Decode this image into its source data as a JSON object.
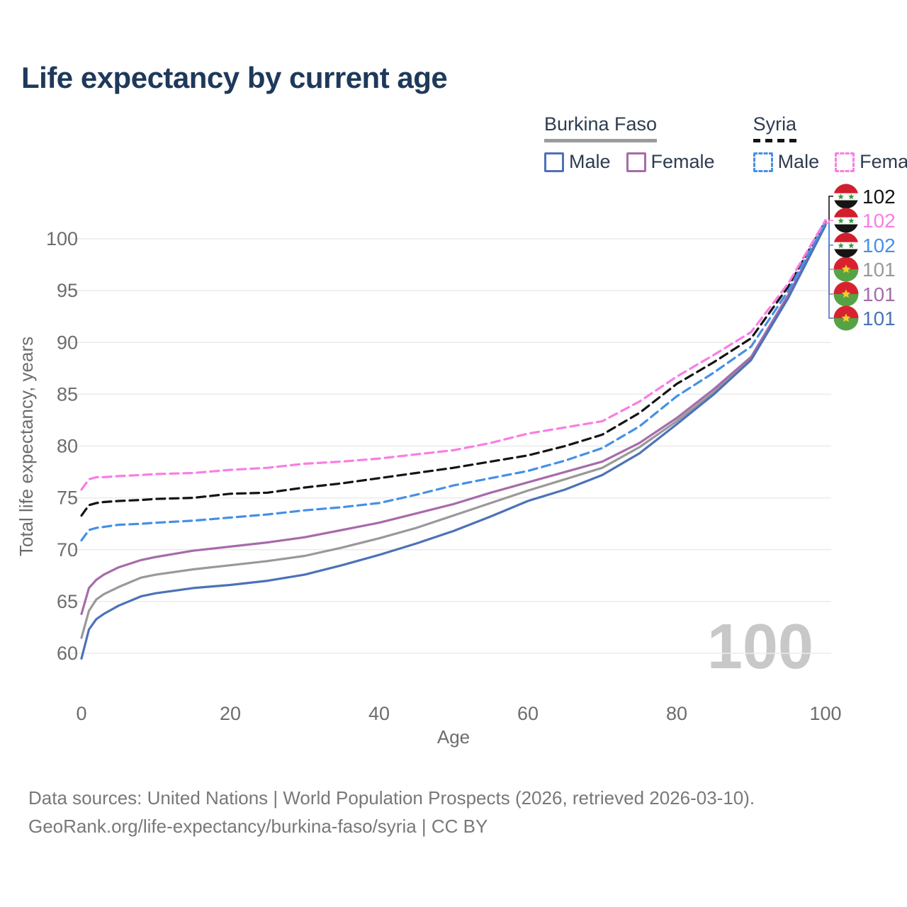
{
  "title": "Life expectancy by current age",
  "legend": {
    "groups": [
      {
        "name": "Burkina Faso",
        "underline_style": "solid",
        "underline_color": "#9b9b9b",
        "items": [
          {
            "label": "Male",
            "color": "#4C72B8",
            "dashed": false
          },
          {
            "label": "Female",
            "color": "#A76BAB",
            "dashed": false
          }
        ]
      },
      {
        "name": "Syria",
        "underline_style": "dashed",
        "underline_color": "#141414",
        "items": [
          {
            "label": "Male",
            "color": "#4590E6",
            "dashed": true
          },
          {
            "label": "Female",
            "color": "#FA7DE3",
            "dashed": true
          }
        ]
      }
    ]
  },
  "chart_data": {
    "type": "line",
    "title": "Life expectancy by current age",
    "xlabel": "Age",
    "ylabel": "Total life expectancy, years",
    "xlim": [
      0,
      100
    ],
    "ylim": [
      57.5,
      103.5
    ],
    "xticks": [
      0,
      20,
      40,
      60,
      80,
      100
    ],
    "yticks": [
      60,
      65,
      70,
      75,
      80,
      85,
      90,
      95,
      100
    ],
    "grid": "horizontal-only",
    "legend_position": "top-right",
    "frame_label": "100",
    "x": [
      0,
      1,
      2,
      3,
      5,
      8,
      10,
      15,
      20,
      25,
      30,
      35,
      40,
      45,
      50,
      55,
      60,
      65,
      70,
      75,
      80,
      85,
      90,
      95,
      100
    ],
    "series": [
      {
        "name": "Burkina Faso Total",
        "country": "burkina-faso",
        "sex": "total",
        "color": "#999999",
        "dashed": false,
        "end_label": "101",
        "label_row": 3,
        "values": [
          61.5,
          64.1,
          65.2,
          65.7,
          66.4,
          67.3,
          67.6,
          68.1,
          68.5,
          68.9,
          69.4,
          70.2,
          71.1,
          72.1,
          73.3,
          74.5,
          75.7,
          76.8,
          77.9,
          79.9,
          82.4,
          85.2,
          88.5,
          94.5,
          101.4
        ]
      },
      {
        "name": "Burkina Faso Female",
        "country": "burkina-faso",
        "sex": "female",
        "color": "#A76BAB",
        "dashed": false,
        "end_label": "101",
        "label_row": 4,
        "values": [
          63.8,
          66.3,
          67.1,
          67.6,
          68.3,
          69.0,
          69.3,
          69.9,
          70.3,
          70.7,
          71.2,
          71.9,
          72.6,
          73.5,
          74.4,
          75.5,
          76.5,
          77.5,
          78.5,
          80.3,
          82.7,
          85.5,
          88.6,
          94.6,
          101.4
        ]
      },
      {
        "name": "Burkina Faso Male",
        "country": "burkina-faso",
        "sex": "male",
        "color": "#4C72B8",
        "dashed": false,
        "end_label": "101",
        "label_row": 5,
        "values": [
          59.5,
          62.3,
          63.3,
          63.8,
          64.6,
          65.5,
          65.8,
          66.3,
          66.6,
          67.0,
          67.6,
          68.5,
          69.5,
          70.6,
          71.8,
          73.2,
          74.7,
          75.8,
          77.2,
          79.3,
          82.1,
          85.0,
          88.3,
          94.3,
          101.3
        ]
      },
      {
        "name": "Syria Total",
        "country": "syria",
        "sex": "total",
        "color": "#141414",
        "dashed": true,
        "end_label": "102",
        "label_row": 0,
        "values": [
          73.3,
          74.3,
          74.5,
          74.6,
          74.7,
          74.8,
          74.9,
          75.0,
          75.4,
          75.5,
          76.0,
          76.4,
          76.9,
          77.4,
          77.9,
          78.5,
          79.1,
          80.0,
          81.1,
          83.2,
          86.0,
          88.1,
          90.4,
          95.4,
          101.7
        ]
      },
      {
        "name": "Syria Male",
        "country": "syria",
        "sex": "male",
        "color": "#4590E6",
        "dashed": true,
        "end_label": "102",
        "label_row": 2,
        "values": [
          70.9,
          71.9,
          72.1,
          72.2,
          72.4,
          72.5,
          72.6,
          72.8,
          73.1,
          73.4,
          73.8,
          74.1,
          74.5,
          75.3,
          76.2,
          76.9,
          77.6,
          78.6,
          79.8,
          81.9,
          84.8,
          87.1,
          89.6,
          95.0,
          101.6
        ]
      },
      {
        "name": "Syria Female",
        "country": "syria",
        "sex": "female",
        "color": "#FA7DE3",
        "dashed": true,
        "end_label": "102",
        "label_row": 1,
        "values": [
          75.8,
          76.8,
          77.0,
          77.0,
          77.1,
          77.2,
          77.3,
          77.4,
          77.7,
          77.9,
          78.3,
          78.5,
          78.8,
          79.2,
          79.6,
          80.3,
          81.2,
          81.8,
          82.4,
          84.3,
          86.7,
          88.8,
          91.0,
          95.7,
          101.8
        ]
      }
    ]
  },
  "flags": {
    "syria": {
      "red": "#D21F2E",
      "white": "#FFFFFF",
      "black": "#151515",
      "star": "#3E9B3E"
    },
    "burkina-faso": {
      "red": "#D8232F",
      "green": "#55A345",
      "star": "#F5CE2B"
    }
  },
  "footer": {
    "line1": "Data sources: United Nations | World Population Prospects (2026, retrieved 2026-03-10).",
    "line2": "GeoRank.org/life-expectancy/burkina-faso/syria | CC BY"
  }
}
